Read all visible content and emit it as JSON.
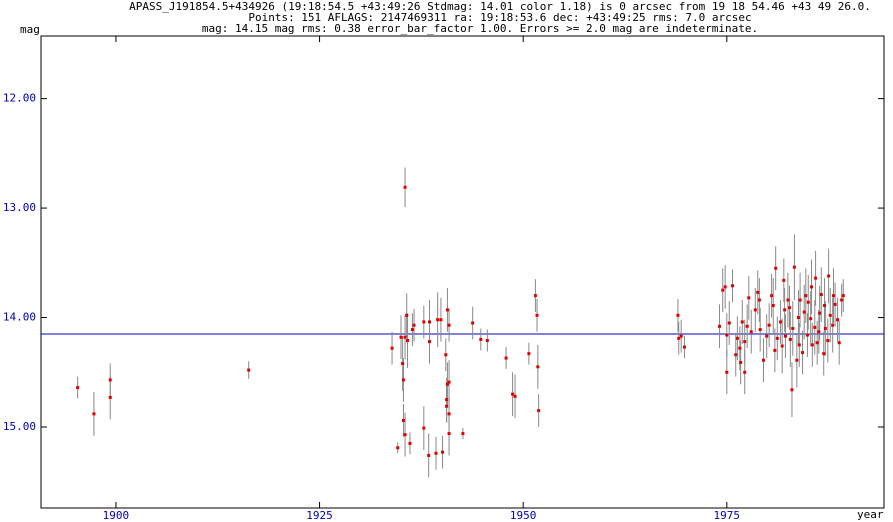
{
  "chart_data": {
    "type": "scatter",
    "title": "APASS_J191854.5+434926 (19:18:54.5 +43:49:26 Stdmag: 14.01 color 1.18) is 0 arcsec from 19 18 54.46 +43 49 26.0.",
    "subtitle": "Points: 151 AFLAGS: 2147469311 ra: 19:18:53.6 dec: +43:49:25 rms: 7.0 arcsec",
    "note": "mag: 14.15 mag rms: 0.38 error_bar_factor 1.00. Errors >= 2.0 mag are indeterminate.",
    "ylabel": "mag",
    "xlabel": "year",
    "xlim": [
      1890.8,
      1994.3
    ],
    "ylim": [
      15.74,
      11.3
    ],
    "xticks": [
      1900,
      1925,
      1950,
      1975
    ],
    "yticks": [
      {
        "value": 12,
        "label": "12.00"
      },
      {
        "value": 13,
        "label": "13.00"
      },
      {
        "value": 14,
        "label": "14.00"
      },
      {
        "value": 15,
        "label": "15.00"
      }
    ],
    "mean_line": 14.15,
    "color": "#e00000",
    "error_color": "#888888",
    "line_color": "#0000c0",
    "x": [
      1895.3,
      1897.3,
      1899.3,
      1899.3,
      1916.3,
      1935.5,
      1933.9,
      1934.6,
      1935.0,
      1935.2,
      1935.3,
      1935.3,
      1935.5,
      1935.5,
      1935.7,
      1935.8,
      1936.1,
      1936.4,
      1936.6,
      1937.8,
      1937.8,
      1938.4,
      1938.5,
      1938.5,
      1939.3,
      1939.5,
      1939.9,
      1940.1,
      1940.5,
      1940.6,
      1940.6,
      1940.7,
      1940.7,
      1940.9,
      1940.9,
      1940.9,
      1940.9,
      1942.6,
      1943.8,
      1944.8,
      1945.6,
      1947.9,
      1948.7,
      1949.0,
      1950.7,
      1951.5,
      1951.7,
      1951.8,
      1951.9,
      1969.0,
      1969.1,
      1969.4,
      1969.8,
      1974.1,
      1974.5,
      1974.8,
      1975.0,
      1975.0,
      1975.3,
      1975.7,
      1976.1,
      1976.3,
      1976.6,
      1976.7,
      1976.9,
      1977.2,
      1977.2,
      1977.5,
      1977.7,
      1978.0,
      1978.5,
      1978.8,
      1979.0,
      1979.1,
      1979.5,
      1979.9,
      1980.2,
      1980.5,
      1980.7,
      1980.9,
      1981.0,
      1981.2,
      1981.6,
      1981.8,
      1982.0,
      1982.1,
      1982.2,
      1982.5,
      1982.7,
      1982.8,
      1983.0,
      1983.1,
      1983.3,
      1983.6,
      1983.8,
      1983.9,
      1984.0,
      1984.3,
      1984.5,
      1984.7,
      1984.9,
      1985.0,
      1985.3,
      1985.4,
      1985.5,
      1985.8,
      1985.9,
      1986.1,
      1986.3,
      1986.4,
      1986.6,
      1986.9,
      1987.0,
      1987.1,
      1987.4,
      1987.5,
      1987.7,
      1988.0,
      1988.1,
      1988.3,
      1988.6,
      1988.8,
      1989.1,
      1989.3
    ],
    "values": [
      14.64,
      14.88,
      14.57,
      14.73,
      14.48,
      12.81,
      14.28,
      15.19,
      14.18,
      14.42,
      14.57,
      14.94,
      15.07,
      14.18,
      13.98,
      14.21,
      15.15,
      14.11,
      14.07,
      15.01,
      14.04,
      15.26,
      14.22,
      14.04,
      15.24,
      14.02,
      14.02,
      15.23,
      14.34,
      14.75,
      14.81,
      13.93,
      14.61,
      14.59,
      15.06,
      14.07,
      14.88,
      15.06,
      14.05,
      14.2,
      14.21,
      14.37,
      14.7,
      14.72,
      14.33,
      13.8,
      13.98,
      14.45,
      14.85,
      13.98,
      14.19,
      14.17,
      14.27,
      14.08,
      13.75,
      13.72,
      14.16,
      14.5,
      14.05,
      13.71,
      14.34,
      14.19,
      14.28,
      14.41,
      14.04,
      14.5,
      14.22,
      14.08,
      13.82,
      14.13,
      13.93,
      13.77,
      13.84,
      14.11,
      14.39,
      14.17,
      14.07,
      13.8,
      13.89,
      14.3,
      13.55,
      14.19,
      14.04,
      14.26,
      13.66,
      13.93,
      14.17,
      13.84,
      13.91,
      14.2,
      14.66,
      14.1,
      13.54,
      14.39,
      14.0,
      14.25,
      13.84,
      14.32,
      13.95,
      13.8,
      14.16,
      13.86,
      14.01,
      13.72,
      14.25,
      14.09,
      13.64,
      14.23,
      14.13,
      13.96,
      13.79,
      14.33,
      13.89,
      14.1,
      14.21,
      13.62,
      13.98,
      14.07,
      13.8,
      13.88,
      14.02,
      14.23,
      13.84,
      13.8
    ],
    "errors": [
      0.1,
      0.2,
      0.15,
      0.2,
      0.08,
      0.18,
      0.15,
      0.05,
      0.2,
      0.25,
      0.2,
      0.15,
      0.2,
      0.2,
      0.2,
      0.25,
      0.1,
      0.15,
      0.15,
      0.2,
      0.15,
      0.2,
      0.2,
      0.2,
      0.15,
      0.25,
      0.2,
      0.15,
      0.15,
      0.2,
      0.15,
      0.2,
      0.2,
      0.2,
      0.2,
      0.15,
      0.15,
      0.05,
      0.15,
      0.1,
      0.1,
      0.1,
      0.2,
      0.2,
      0.1,
      0.15,
      0.15,
      0.2,
      0.15,
      0.15,
      0.15,
      0.15,
      0.1,
      0.2,
      0.2,
      0.2,
      0.2,
      0.2,
      0.2,
      0.15,
      0.2,
      0.2,
      0.2,
      0.2,
      0.2,
      0.2,
      0.2,
      0.2,
      0.2,
      0.2,
      0.2,
      0.2,
      0.2,
      0.2,
      0.2,
      0.2,
      0.2,
      0.2,
      0.25,
      0.2,
      0.2,
      0.2,
      0.2,
      0.25,
      0.2,
      0.2,
      0.2,
      0.25,
      0.2,
      0.25,
      0.25,
      0.25,
      0.3,
      0.25,
      0.25,
      0.2,
      0.25,
      0.2,
      0.25,
      0.25,
      0.2,
      0.25,
      0.25,
      0.25,
      0.2,
      0.25,
      0.25,
      0.2,
      0.2,
      0.25,
      0.25,
      0.2,
      0.25,
      0.25,
      0.2,
      0.25,
      0.25,
      0.25,
      0.25,
      0.2,
      0.2,
      0.2,
      0.15,
      0.15
    ]
  }
}
